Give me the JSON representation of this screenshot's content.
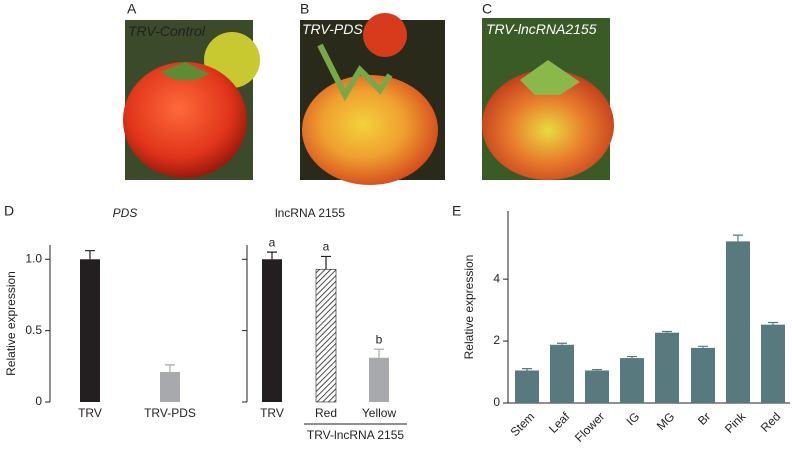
{
  "photos": [
    {
      "letter": "A",
      "label": "TRV-Control"
    },
    {
      "letter": "B",
      "label": "TRV-PDS"
    },
    {
      "letter": "C",
      "label": "TRV-lncRNA2155"
    }
  ],
  "chart_data": [
    {
      "type": "bar",
      "panel": "D",
      "title": "PDS",
      "y_label": "Relative expression",
      "categories": [
        "TRV",
        "TRV-PDS"
      ],
      "values": [
        1.0,
        0.21
      ],
      "errors": [
        0.06,
        0.05
      ],
      "colors": [
        "#231f20",
        "#a7a9ac"
      ],
      "hatched": [
        false,
        false
      ],
      "ylim": [
        0,
        1.1
      ],
      "yticks": [
        0,
        0.5,
        {
          "value": 1,
          "label": "1.0"
        }
      ]
    },
    {
      "type": "bar",
      "title": "lncRNA 2155",
      "categories": [
        "TRV",
        "Red",
        "Yellow"
      ],
      "values": [
        1.0,
        0.93,
        0.31
      ],
      "errors": [
        0.05,
        0.09,
        0.06
      ],
      "annotations": [
        "a",
        "a",
        "b"
      ],
      "group_label": "TRV-lncRNA 2155",
      "colors": [
        "#231f20",
        "#ffffff",
        "#a7a9ac"
      ],
      "hatched": [
        false,
        true,
        false
      ],
      "ylim": [
        0,
        1.1
      ],
      "yticks": [
        0,
        0.5,
        1
      ]
    },
    {
      "type": "bar",
      "panel": "E",
      "y_label": "Relative expression",
      "categories": [
        "Stem",
        "Leaf",
        "Flower",
        "IG",
        "MG",
        "Br",
        "Pink",
        "Red"
      ],
      "values": [
        1.05,
        1.88,
        1.05,
        1.45,
        2.27,
        1.78,
        5.22,
        2.53
      ],
      "errors": [
        0.06,
        0.05,
        0.03,
        0.05,
        0.04,
        0.05,
        0.2,
        0.07
      ],
      "color": "#587a7e",
      "ylim": [
        0,
        6.2
      ],
      "yticks": [
        0,
        2,
        4
      ]
    }
  ]
}
